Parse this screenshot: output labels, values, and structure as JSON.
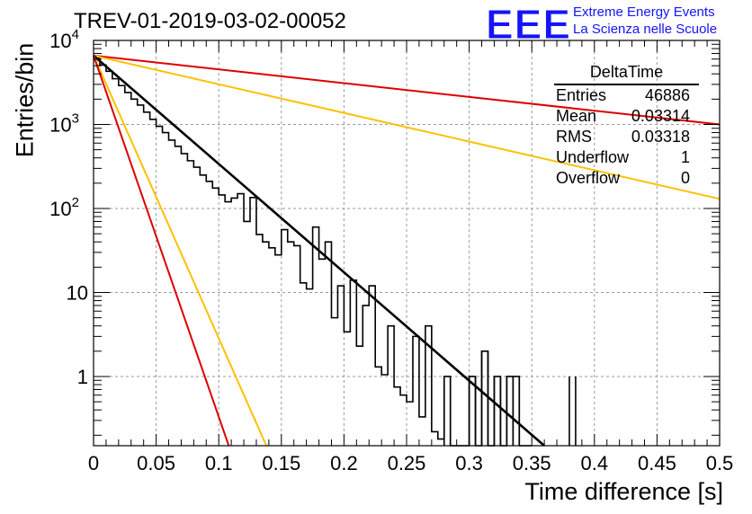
{
  "title": "TREV-01-2019-03-02-00052",
  "logo": {
    "letters": "EEE",
    "line1": "Extreme Energy Events",
    "line2": "La Scienza nelle Scuole",
    "color": "#1414ff"
  },
  "stats": {
    "title": "DeltaTime",
    "rows": [
      {
        "label": "Entries",
        "value": "46886"
      },
      {
        "label": "Mean",
        "value": "0.03314"
      },
      {
        "label": "RMS",
        "value": "0.03318"
      },
      {
        "label": "Underflow",
        "value": "1"
      },
      {
        "label": "Overflow",
        "value": "0"
      }
    ]
  },
  "chart_data": {
    "type": "line",
    "title": "TREV-01-2019-03-02-00052",
    "xlabel": "Time difference [s]",
    "ylabel": "Entries/bin",
    "xlim": [
      0,
      0.5
    ],
    "ylim": [
      0.15,
      10000
    ],
    "yscale": "log",
    "grid": true,
    "x_ticks": [
      "0",
      "0.05",
      "0.1",
      "0.15",
      "0.2",
      "0.25",
      "0.3",
      "0.35",
      "0.4",
      "0.45",
      "0.5"
    ],
    "y_ticks": [
      {
        "value": 1,
        "label": "1"
      },
      {
        "value": 10,
        "label": "10"
      },
      {
        "value": 100,
        "label": "10^2"
      },
      {
        "value": 1000,
        "label": "10^3"
      },
      {
        "value": 10000,
        "label": "10^4"
      }
    ],
    "histogram": {
      "bin_width": 0.005,
      "color": "#000000",
      "counts": [
        6200,
        5100,
        4300,
        3500,
        2900,
        2400,
        2000,
        1700,
        1400,
        1150,
        950,
        800,
        650,
        550,
        450,
        370,
        310,
        250,
        210,
        175,
        145,
        120,
        133,
        82,
        70,
        57,
        49,
        40,
        34,
        28,
        23,
        19,
        16,
        13,
        11,
        9,
        7.3,
        6.1,
        5,
        4.1,
        3.4,
        2.8,
        2.3,
        1.9,
        1.55,
        1.3,
        1.05,
        0.9,
        0.75,
        0.6,
        0.5,
        0.4,
        0.33,
        0.27,
        0.22,
        0.18,
        0.15,
        0.15,
        0.15,
        0.15,
        0.15,
        0.15,
        0.15,
        0.15,
        0.15,
        0.15,
        0.15,
        0.15,
        0.15,
        0.15
      ],
      "measured": [
        {
          "x0": 0.115,
          "x1": 0.12,
          "y": 150
        },
        {
          "x0": 0.125,
          "x1": 0.13,
          "y": 135
        },
        {
          "x0": 0.15,
          "x1": 0.155,
          "y": 56
        },
        {
          "x0": 0.155,
          "x1": 0.16,
          "y": 40
        },
        {
          "x0": 0.16,
          "x1": 0.165,
          "y": 36
        },
        {
          "x0": 0.175,
          "x1": 0.18,
          "y": 60
        },
        {
          "x0": 0.18,
          "x1": 0.185,
          "y": 25
        },
        {
          "x0": 0.185,
          "x1": 0.19,
          "y": 40
        },
        {
          "x0": 0.195,
          "x1": 0.2,
          "y": 12
        },
        {
          "x0": 0.205,
          "x1": 0.21,
          "y": 14
        },
        {
          "x0": 0.215,
          "x1": 0.22,
          "y": 7
        },
        {
          "x0": 0.22,
          "x1": 0.225,
          "y": 12
        },
        {
          "x0": 0.235,
          "x1": 0.24,
          "y": 4
        },
        {
          "x0": 0.255,
          "x1": 0.26,
          "y": 3
        },
        {
          "x0": 0.265,
          "x1": 0.27,
          "y": 4
        },
        {
          "x0": 0.28,
          "x1": 0.285,
          "y": 1
        },
        {
          "x0": 0.3,
          "x1": 0.305,
          "y": 1
        },
        {
          "x0": 0.31,
          "x1": 0.315,
          "y": 2
        },
        {
          "x0": 0.32,
          "x1": 0.325,
          "y": 1
        },
        {
          "x0": 0.33,
          "x1": 0.335,
          "y": 1
        },
        {
          "x0": 0.335,
          "x1": 0.34,
          "y": 1
        },
        {
          "x0": 0.38,
          "x1": 0.385,
          "y": 1
        }
      ]
    },
    "series": [
      {
        "x": [
          0,
          0.5
        ],
        "y": [
          6600,
          1000
        ],
        "color": "#dd0000"
      },
      {
        "x": [
          0,
          0.5
        ],
        "y": [
          6600,
          130
        ],
        "color": "#ffc000"
      },
      {
        "x": [
          0,
          0.36
        ],
        "y": [
          6600,
          0.15
        ],
        "color": "#000000"
      },
      {
        "x": [
          0,
          0.138
        ],
        "y": [
          6600,
          0.15
        ],
        "color": "#ffc000"
      },
      {
        "x": [
          0,
          0.108
        ],
        "y": [
          6600,
          0.15
        ],
        "color": "#dd0000"
      }
    ]
  }
}
